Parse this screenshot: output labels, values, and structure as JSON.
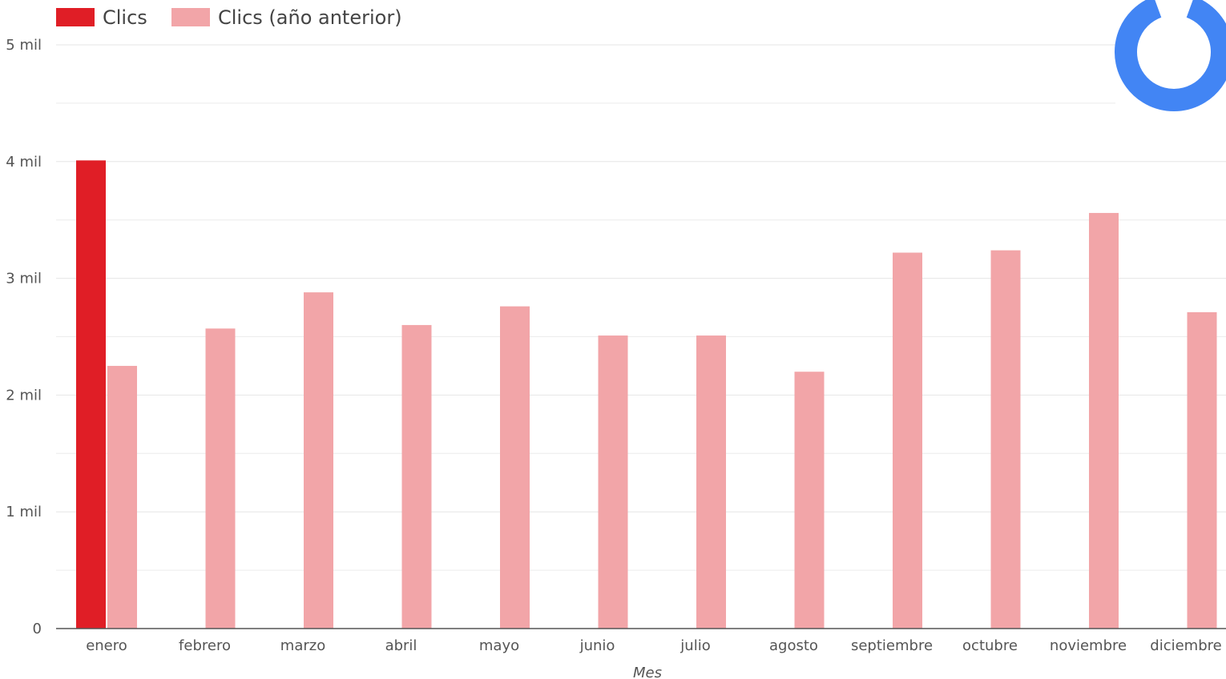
{
  "chart_data": {
    "type": "bar",
    "title": "",
    "xlabel": "Mes",
    "ylabel": "",
    "ylim": [
      0,
      5000
    ],
    "y_ticks": [
      0,
      1000,
      2000,
      3000,
      4000,
      5000
    ],
    "y_tick_labels": [
      "0",
      "1 mil",
      "2 mil",
      "3 mil",
      "4 mil",
      "5 mil"
    ],
    "grid": true,
    "legend_position": "top-left",
    "categories": [
      "enero",
      "febrero",
      "marzo",
      "abril",
      "mayo",
      "junio",
      "julio",
      "agosto",
      "septiembre",
      "octubre",
      "noviembre",
      "diciembre"
    ],
    "series": [
      {
        "name": "Clics",
        "color": "#e01e26",
        "values": [
          4010,
          null,
          null,
          null,
          null,
          null,
          null,
          null,
          null,
          null,
          null,
          null
        ]
      },
      {
        "name": "Clics (año anterior)",
        "color": "#f2a5a8",
        "values": [
          2250,
          2570,
          2880,
          2600,
          2760,
          2510,
          2510,
          2200,
          3220,
          3240,
          3560,
          2710
        ]
      }
    ]
  },
  "loading_indicator": {
    "icon": "loading-spinner-icon",
    "color": "#4285f4"
  }
}
